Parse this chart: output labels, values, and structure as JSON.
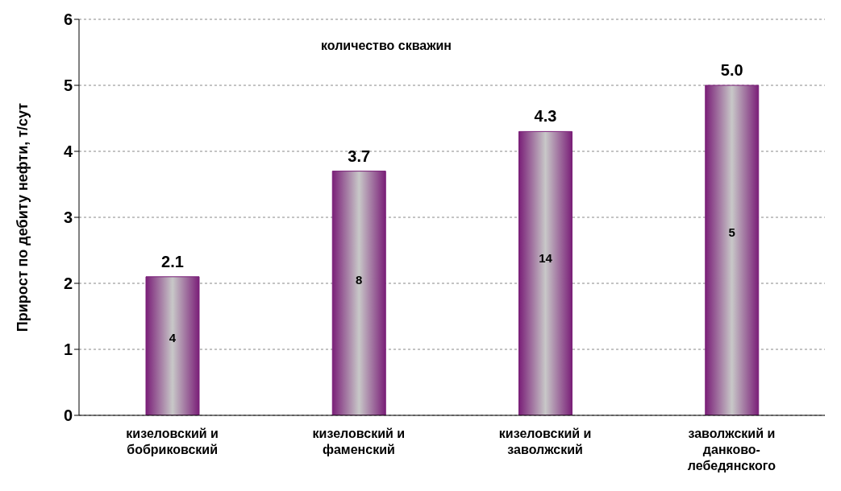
{
  "chart_data": {
    "type": "bar",
    "ylabel": "Прирост по дебиту нефти, т/сут",
    "categories": [
      "кизеловский и бобриковский",
      "кизеловский и фаменский",
      "кизеловский и заволжский",
      "заволжский и данково-лебедянского"
    ],
    "values": [
      2.1,
      3.7,
      4.3,
      5.0
    ],
    "value_labels": [
      "2.1",
      "3.7",
      "4.3",
      "5.0"
    ],
    "color": "#7a1f78",
    "ylim": [
      0,
      6
    ],
    "yticks": [
      0,
      1,
      2,
      3,
      4,
      5,
      6
    ],
    "grid": "y",
    "annotations": [
      "количество скважин",
      "4",
      "8",
      "14",
      "5"
    ]
  }
}
